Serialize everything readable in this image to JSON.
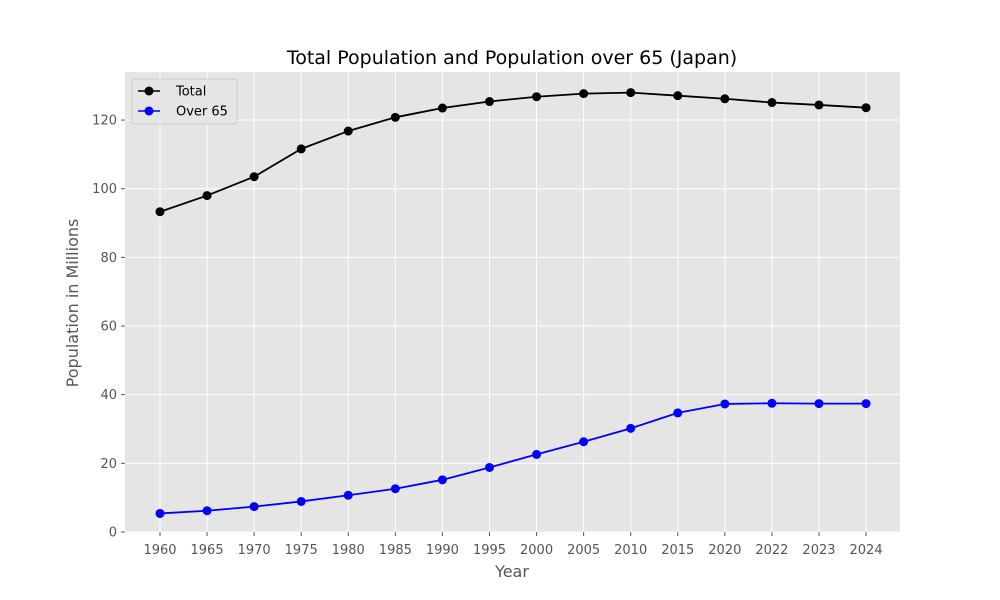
{
  "chart_data": {
    "type": "line",
    "title": "Total Population and Population over 65 (Japan)",
    "xlabel": "Year",
    "ylabel": "Population in Millions",
    "categories": [
      "1960",
      "1965",
      "1970",
      "1975",
      "1980",
      "1985",
      "1990",
      "1995",
      "2000",
      "2005",
      "2010",
      "2015",
      "2020",
      "2022",
      "2023",
      "2024"
    ],
    "ylim": [
      0,
      134
    ],
    "yticks": [
      "0",
      "20",
      "40",
      "60",
      "80",
      "100",
      "120"
    ],
    "grid": true,
    "legend_position": "top-left",
    "background_color": "#e5e5e5",
    "grid_color": "#ffffff",
    "series": [
      {
        "name": "Total",
        "color": "#000000",
        "marker": "circle",
        "values": [
          93.3,
          98.0,
          103.5,
          111.6,
          116.8,
          120.8,
          123.5,
          125.4,
          126.8,
          127.7,
          128.0,
          127.1,
          126.2,
          125.1,
          124.4,
          123.6
        ]
      },
      {
        "name": "Over 65",
        "color": "#0000ff",
        "marker": "circle",
        "values": [
          5.4,
          6.2,
          7.4,
          8.9,
          10.7,
          12.6,
          15.2,
          18.8,
          22.6,
          26.3,
          30.2,
          34.7,
          37.3,
          37.5,
          37.4,
          37.4
        ]
      }
    ]
  }
}
